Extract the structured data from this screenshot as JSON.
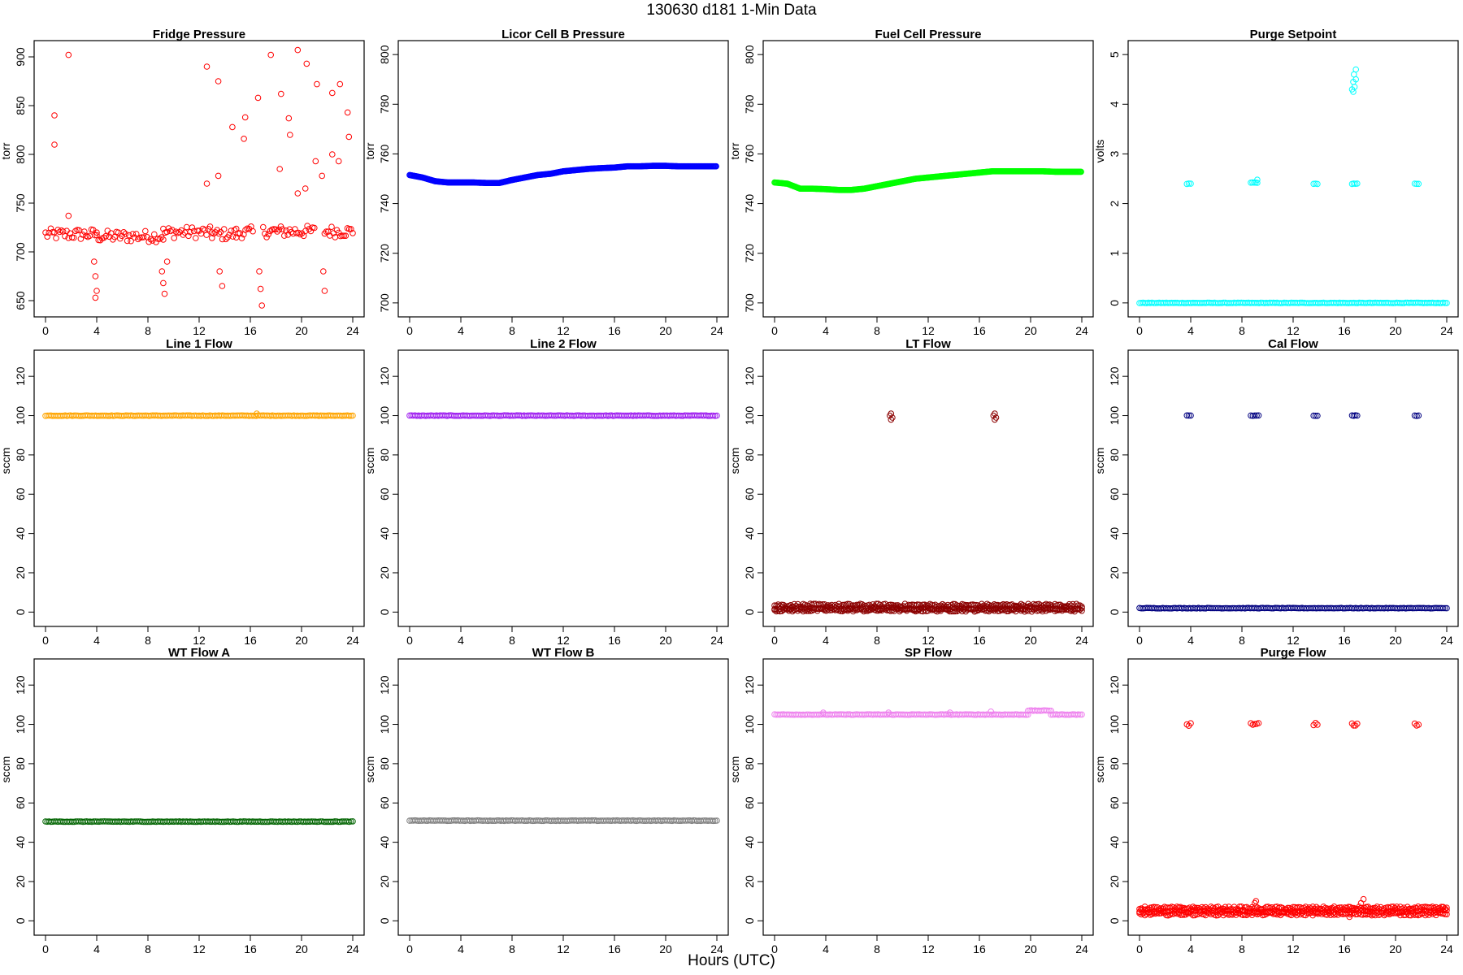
{
  "figure": {
    "title": "130630    d181    1-Min Data",
    "xlabel": "Hours (UTC)"
  },
  "chart_data": [
    {
      "type": "scatter",
      "title": "Fridge Pressure",
      "ylabel": "torr",
      "color": "#ff0000",
      "xlim": [
        0,
        24
      ],
      "ylim": [
        640,
        910
      ],
      "xticks": [
        0,
        4,
        8,
        12,
        16,
        20,
        24
      ],
      "yticks": [
        650,
        700,
        750,
        800,
        850,
        900
      ],
      "segments": [
        {
          "x": [
            0,
            4
          ],
          "y": [
            718,
            718
          ]
        },
        {
          "x": [
            4,
            9.2
          ],
          "y": [
            716,
            716
          ]
        },
        {
          "x": [
            9.2,
            13
          ],
          "y": [
            720,
            720
          ]
        },
        {
          "x": [
            13,
            14.9
          ],
          "y": [
            718,
            718
          ]
        },
        {
          "x": [
            14.9,
            16.2
          ],
          "y": [
            720,
            720
          ]
        },
        {
          "x": [
            17,
            21
          ],
          "y": [
            721,
            721
          ]
        },
        {
          "x": [
            21.8,
            24
          ],
          "y": [
            721,
            721
          ]
        }
      ],
      "points": [
        {
          "x": 0.7,
          "y": 840
        },
        {
          "x": 0.7,
          "y": 810
        },
        {
          "x": 1.8,
          "y": 902
        },
        {
          "x": 1.8,
          "y": 737
        },
        {
          "x": 3.8,
          "y": 690
        },
        {
          "x": 3.9,
          "y": 675
        },
        {
          "x": 4.0,
          "y": 660
        },
        {
          "x": 3.9,
          "y": 653
        },
        {
          "x": 9.1,
          "y": 680
        },
        {
          "x": 9.2,
          "y": 668
        },
        {
          "x": 9.3,
          "y": 657
        },
        {
          "x": 9.5,
          "y": 690
        },
        {
          "x": 12.6,
          "y": 890
        },
        {
          "x": 12.6,
          "y": 770
        },
        {
          "x": 13.5,
          "y": 875
        },
        {
          "x": 13.5,
          "y": 778
        },
        {
          "x": 13.6,
          "y": 680
        },
        {
          "x": 13.8,
          "y": 665
        },
        {
          "x": 14.6,
          "y": 828
        },
        {
          "x": 15.6,
          "y": 838
        },
        {
          "x": 15.5,
          "y": 816
        },
        {
          "x": 16.6,
          "y": 858
        },
        {
          "x": 16.7,
          "y": 680
        },
        {
          "x": 16.8,
          "y": 662
        },
        {
          "x": 16.9,
          "y": 645
        },
        {
          "x": 17.6,
          "y": 902
        },
        {
          "x": 18.4,
          "y": 862
        },
        {
          "x": 18.3,
          "y": 785
        },
        {
          "x": 19.0,
          "y": 837
        },
        {
          "x": 19.1,
          "y": 820
        },
        {
          "x": 19.7,
          "y": 907
        },
        {
          "x": 19.7,
          "y": 760
        },
        {
          "x": 20.4,
          "y": 893
        },
        {
          "x": 20.3,
          "y": 765
        },
        {
          "x": 21.2,
          "y": 872
        },
        {
          "x": 21.1,
          "y": 793
        },
        {
          "x": 21.6,
          "y": 778
        },
        {
          "x": 21.7,
          "y": 680
        },
        {
          "x": 21.8,
          "y": 660
        },
        {
          "x": 22.4,
          "y": 863
        },
        {
          "x": 22.4,
          "y": 800
        },
        {
          "x": 23.0,
          "y": 872
        },
        {
          "x": 22.9,
          "y": 793
        },
        {
          "x": 23.6,
          "y": 843
        },
        {
          "x": 23.7,
          "y": 818
        }
      ]
    },
    {
      "type": "scatter",
      "title": "Licor Cell B Pressure",
      "ylabel": "torr",
      "color": "#0000ff",
      "xlim": [
        0,
        24
      ],
      "ylim": [
        697,
        803
      ],
      "xticks": [
        0,
        4,
        8,
        12,
        16,
        20,
        24
      ],
      "yticks": [
        700,
        720,
        740,
        760,
        780,
        800
      ],
      "series": [
        {
          "x": [
            0,
            1,
            2,
            3,
            4,
            5,
            6,
            7,
            8,
            9,
            10,
            11,
            12,
            13,
            14,
            15,
            16,
            17,
            18,
            19,
            20,
            21,
            22,
            23,
            24
          ],
          "y": [
            751.5,
            750.5,
            749,
            748.5,
            748.5,
            748.5,
            748.3,
            748.3,
            749.5,
            750.5,
            751.5,
            752,
            753,
            753.5,
            754,
            754.3,
            754.5,
            755,
            755,
            755.2,
            755.2,
            755,
            755,
            755,
            755
          ]
        }
      ],
      "segments": [],
      "points": []
    },
    {
      "type": "scatter",
      "title": "Fuel Cell Pressure",
      "ylabel": "torr",
      "color": "#00ff00",
      "xlim": [
        0,
        24
      ],
      "ylim": [
        697,
        803
      ],
      "xticks": [
        0,
        4,
        8,
        12,
        16,
        20,
        24
      ],
      "yticks": [
        700,
        720,
        740,
        760,
        780,
        800
      ],
      "series": [
        {
          "x": [
            0,
            1,
            2,
            3,
            4,
            5,
            6,
            7,
            8,
            9,
            10,
            11,
            12,
            13,
            14,
            15,
            16,
            17,
            18,
            19,
            20,
            21,
            22,
            23,
            24
          ],
          "y": [
            748.5,
            748,
            746,
            746,
            745.8,
            745.5,
            745.5,
            746,
            747,
            748,
            749,
            750,
            750.5,
            751,
            751.5,
            752,
            752.5,
            753,
            753,
            753,
            753,
            753,
            752.8,
            752.8,
            752.8
          ]
        }
      ],
      "segments": [],
      "points": []
    },
    {
      "type": "scatter",
      "title": "Purge Setpoint",
      "ylabel": "volts",
      "color": "#00ffff",
      "xlim": [
        0,
        24
      ],
      "ylim": [
        -0.15,
        5.15
      ],
      "xticks": [
        0,
        4,
        8,
        12,
        16,
        20,
        24
      ],
      "yticks": [
        0,
        1,
        2,
        3,
        4,
        5
      ],
      "segments": [
        {
          "x": [
            0,
            24
          ],
          "y": [
            0,
            0
          ]
        },
        {
          "x": [
            3.7,
            4.0
          ],
          "y": [
            2.4,
            2.4
          ]
        },
        {
          "x": [
            8.7,
            9.2
          ],
          "y": [
            2.42,
            2.42
          ]
        },
        {
          "x": [
            13.6,
            13.9
          ],
          "y": [
            2.4,
            2.4
          ]
        },
        {
          "x": [
            16.6,
            17.0
          ],
          "y": [
            2.4,
            2.4
          ]
        },
        {
          "x": [
            21.5,
            21.8
          ],
          "y": [
            2.4,
            2.4
          ]
        }
      ],
      "points": [
        {
          "x": 16.6,
          "y": 4.3
        },
        {
          "x": 16.7,
          "y": 4.45
        },
        {
          "x": 16.75,
          "y": 4.6
        },
        {
          "x": 16.9,
          "y": 4.7
        },
        {
          "x": 16.8,
          "y": 4.35
        },
        {
          "x": 16.7,
          "y": 4.25
        },
        {
          "x": 16.9,
          "y": 4.5
        },
        {
          "x": 9.2,
          "y": 2.48
        }
      ]
    },
    {
      "type": "scatter",
      "title": "Line 1 Flow",
      "ylabel": "sccm",
      "color": "#ffa500",
      "xlim": [
        0,
        24
      ],
      "ylim": [
        -4,
        130
      ],
      "xticks": [
        0,
        4,
        8,
        12,
        16,
        20,
        24
      ],
      "yticks": [
        0,
        20,
        40,
        60,
        80,
        100,
        120
      ],
      "segments": [
        {
          "x": [
            0,
            24
          ],
          "y": [
            100,
            100
          ]
        }
      ],
      "points": [
        {
          "x": 16.5,
          "y": 101
        }
      ]
    },
    {
      "type": "scatter",
      "title": "Line 2 Flow",
      "ylabel": "sccm",
      "color": "#a020f0",
      "xlim": [
        0,
        24
      ],
      "ylim": [
        -4,
        130
      ],
      "xticks": [
        0,
        4,
        8,
        12,
        16,
        20,
        24
      ],
      "yticks": [
        0,
        20,
        40,
        60,
        80,
        100,
        120
      ],
      "segments": [
        {
          "x": [
            0,
            24
          ],
          "y": [
            100,
            100
          ]
        }
      ],
      "points": []
    },
    {
      "type": "scatter",
      "title": "LT Flow",
      "ylabel": "sccm",
      "color": "#8b0000",
      "xlim": [
        0,
        24
      ],
      "ylim": [
        -4,
        130
      ],
      "xticks": [
        0,
        4,
        8,
        12,
        16,
        20,
        24
      ],
      "yticks": [
        0,
        20,
        40,
        60,
        80,
        100,
        120
      ],
      "segments": [
        {
          "x": [
            0,
            24
          ],
          "y": [
            2,
            2
          ]
        },
        {
          "x": [
            0,
            24
          ],
          "y": [
            3.5,
            3.5
          ]
        },
        {
          "x": [
            0,
            24
          ],
          "y": [
            1,
            1
          ]
        }
      ],
      "points": [
        {
          "x": 9.0,
          "y": 100
        },
        {
          "x": 9.1,
          "y": 101
        },
        {
          "x": 9.2,
          "y": 99
        },
        {
          "x": 9.1,
          "y": 98
        },
        {
          "x": 17.1,
          "y": 100
        },
        {
          "x": 17.2,
          "y": 101
        },
        {
          "x": 17.3,
          "y": 99
        },
        {
          "x": 17.2,
          "y": 98
        }
      ]
    },
    {
      "type": "scatter",
      "title": "Cal Flow",
      "ylabel": "sccm",
      "color": "#000080",
      "xlim": [
        0,
        24
      ],
      "ylim": [
        -4,
        130
      ],
      "xticks": [
        0,
        4,
        8,
        12,
        16,
        20,
        24
      ],
      "yticks": [
        0,
        20,
        40,
        60,
        80,
        100,
        120
      ],
      "segments": [
        {
          "x": [
            0,
            24
          ],
          "y": [
            2,
            2
          ]
        },
        {
          "x": [
            3.7,
            4.0
          ],
          "y": [
            100,
            100
          ]
        },
        {
          "x": 8.7,
          "x2": 9.3,
          "y": [
            100,
            100
          ]
        },
        {
          "x": [
            13.6,
            13.9
          ],
          "y": [
            100,
            100
          ]
        },
        {
          "x": [
            16.6,
            17.0
          ],
          "y": [
            100,
            100
          ]
        },
        {
          "x": [
            21.5,
            21.8
          ],
          "y": [
            100,
            100
          ]
        }
      ],
      "points": []
    },
    {
      "type": "scatter",
      "title": "WT Flow A",
      "ylabel": "sccm",
      "color": "#006400",
      "xlim": [
        0,
        24
      ],
      "ylim": [
        -4,
        130
      ],
      "xticks": [
        0,
        4,
        8,
        12,
        16,
        20,
        24
      ],
      "yticks": [
        0,
        20,
        40,
        60,
        80,
        100,
        120
      ],
      "segments": [
        {
          "x": [
            0,
            24
          ],
          "y": [
            50.5,
            50.5
          ]
        }
      ],
      "points": []
    },
    {
      "type": "scatter",
      "title": "WT Flow B",
      "ylabel": "sccm",
      "color": "#7f7f7f",
      "xlim": [
        0,
        24
      ],
      "ylim": [
        -4,
        130
      ],
      "xticks": [
        0,
        4,
        8,
        12,
        16,
        20,
        24
      ],
      "yticks": [
        0,
        20,
        40,
        60,
        80,
        100,
        120
      ],
      "segments": [
        {
          "x": [
            0,
            24
          ],
          "y": [
            51,
            51
          ]
        }
      ],
      "points": []
    },
    {
      "type": "scatter",
      "title": "SP Flow",
      "ylabel": "sccm",
      "color": "#ee82ee",
      "xlim": [
        0,
        24
      ],
      "ylim": [
        -4,
        130
      ],
      "xticks": [
        0,
        4,
        8,
        12,
        16,
        20,
        24
      ],
      "yticks": [
        0,
        20,
        40,
        60,
        80,
        100,
        120
      ],
      "segments": [
        {
          "x": [
            0,
            19.8
          ],
          "y": [
            105,
            105
          ]
        },
        {
          "x": [
            19.8,
            21.6
          ],
          "y": [
            107,
            107
          ]
        },
        {
          "x": [
            21.6,
            24
          ],
          "y": [
            105,
            105
          ]
        }
      ],
      "points": [
        {
          "x": 3.8,
          "y": 106
        },
        {
          "x": 8.9,
          "y": 106
        },
        {
          "x": 13.7,
          "y": 106
        },
        {
          "x": 16.9,
          "y": 106.5
        }
      ]
    },
    {
      "type": "scatter",
      "title": "Purge Flow",
      "ylabel": "sccm",
      "color": "#ff0000",
      "xlim": [
        0,
        24
      ],
      "ylim": [
        -4,
        130
      ],
      "xticks": [
        0,
        4,
        8,
        12,
        16,
        20,
        24
      ],
      "yticks": [
        0,
        20,
        40,
        60,
        80,
        100,
        120
      ],
      "segments": [
        {
          "x": [
            0,
            24
          ],
          "y": [
            5,
            5
          ]
        },
        {
          "x": [
            0,
            24
          ],
          "y": [
            3.5,
            3.5
          ]
        },
        {
          "x": [
            0,
            24
          ],
          "y": [
            6.5,
            6.5
          ]
        },
        {
          "x": [
            3.7,
            4.0
          ],
          "y": [
            100,
            100
          ]
        },
        {
          "x": [
            8.7,
            9.3
          ],
          "y": [
            100,
            100
          ]
        },
        {
          "x": [
            13.6,
            13.9
          ],
          "y": [
            100,
            100
          ]
        },
        {
          "x": [
            16.6,
            17.0
          ],
          "y": [
            100,
            100
          ]
        },
        {
          "x": [
            21.5,
            21.8
          ],
          "y": [
            100,
            100
          ]
        }
      ],
      "points": [
        {
          "x": 9.0,
          "y": 9
        },
        {
          "x": 9.1,
          "y": 10
        },
        {
          "x": 17.3,
          "y": 9
        },
        {
          "x": 17.5,
          "y": 11
        },
        {
          "x": 17.7,
          "y": 7
        },
        {
          "x": 16.4,
          "y": 2
        },
        {
          "x": 23.7,
          "y": 7
        }
      ]
    }
  ]
}
